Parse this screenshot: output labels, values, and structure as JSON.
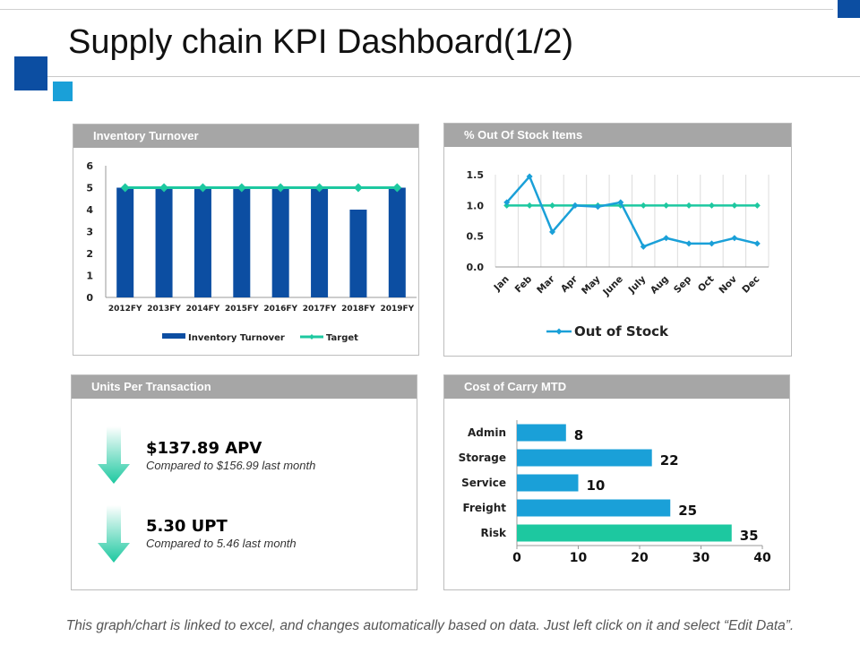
{
  "title": "Supply chain KPI Dashboard(1/2)",
  "footer": "This graph/chart is linked to excel, and changes automatically based on data. Just left click on it and select “Edit Data”.",
  "colors": {
    "brand_dark": "#0c4ea2",
    "brand_light": "#1aa0d8",
    "accent_green": "#1dc8a0",
    "panel_header": "#a6a6a6"
  },
  "panels": {
    "inventory": {
      "header": "Inventory Turnover"
    },
    "out_of_stock": {
      "header": "% Out Of Stock Items"
    },
    "units": {
      "header": "Units Per Transaction"
    },
    "carry": {
      "header": "Cost of Carry MTD"
    }
  },
  "units": {
    "items": [
      {
        "value": "$137.89 APV",
        "caption": "Compared to $156.99 last month",
        "icon": "down-arrow-icon"
      },
      {
        "value": "5.30 UPT",
        "caption": "Compared to 5.46 last month",
        "icon": "down-arrow-icon"
      }
    ]
  },
  "chart_data": [
    {
      "type": "bar",
      "title": "Inventory Turnover",
      "categories": [
        "2012FY",
        "2013FY",
        "2014FY",
        "2015FY",
        "2016FY",
        "2017FY",
        "2018FY",
        "2019FY"
      ],
      "series": [
        {
          "name": "Inventory Turnover",
          "type": "bar",
          "color": "#0c4ea2",
          "values": [
            5,
            5,
            5,
            5,
            5,
            5,
            4,
            5
          ]
        },
        {
          "name": "Target",
          "type": "line",
          "color": "#1dc8a0",
          "values": [
            5,
            5,
            5,
            5,
            5,
            5,
            5,
            5
          ]
        }
      ],
      "ylim": [
        0,
        6
      ],
      "yticks": [
        0,
        1,
        2,
        3,
        4,
        5,
        6
      ],
      "legend": "bottom"
    },
    {
      "type": "line",
      "title": "% Out Of Stock Items",
      "categories": [
        "Jan",
        "Feb",
        "Mar",
        "Apr",
        "May",
        "June",
        "July",
        "Aug",
        "Sep",
        "Oct",
        "Nov",
        "Dec"
      ],
      "series": [
        {
          "name": "Out of Stock",
          "color": "#1aa0d8",
          "values": [
            1.05,
            1.47,
            0.57,
            1.0,
            0.98,
            1.05,
            0.33,
            0.47,
            0.38,
            0.38,
            0.47,
            0.38
          ]
        },
        {
          "color": "#1dc8a0",
          "values": [
            1.0,
            1.0,
            1.0,
            1.0,
            1.0,
            1.0,
            1.0,
            1.0,
            1.0,
            1.0,
            1.0,
            1.0
          ]
        }
      ],
      "ylim": [
        0,
        1.5
      ],
      "yticks": [
        "0.0",
        "0.5",
        "1.0",
        "1.5"
      ],
      "legend": "bottom"
    },
    {
      "type": "bar",
      "orientation": "horizontal",
      "title": "Cost of Carry MTD",
      "categories": [
        "Admin",
        "Storage",
        "Service",
        "Freight",
        "Risk"
      ],
      "values": [
        8,
        22,
        10,
        25,
        35
      ],
      "colors": [
        "#1aa0d8",
        "#1aa0d8",
        "#1aa0d8",
        "#1aa0d8",
        "#1dc8a0"
      ],
      "xlim": [
        0,
        40
      ],
      "xticks": [
        0,
        10,
        20,
        30,
        40
      ]
    }
  ]
}
